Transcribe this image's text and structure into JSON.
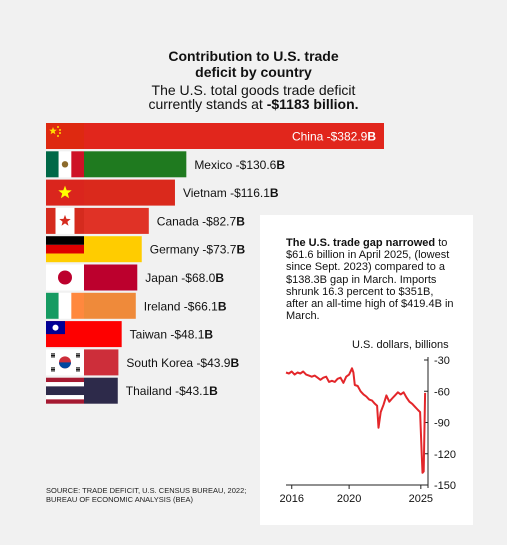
{
  "header": {
    "title_line1": "Contribution to U.S. trade",
    "title_line2": "deficit by country",
    "subtitle_line1": "The U.S. total goods trade deficit",
    "subtitle_line2_prefix": "currently stands at",
    "subtitle_line2_value": "-$1183 billion."
  },
  "source": {
    "line1": "SOURCE: TRADE DEFICIT, U.S. CENSUS BUREAU, 2022;",
    "line2": "BUREAU OF ECONOMIC ANALYSIS (BEA)"
  },
  "colors": {
    "china": "#e1261c",
    "mexico": "#1f7a1f",
    "vietnam": "#da291c",
    "canada": "#e03226",
    "germany": "#ffcc00",
    "japan": "#bc002d",
    "ireland": "#ef8a3a",
    "taiwan": "#fe0000",
    "south_korea": "#cd2e3a",
    "thailand": "#2d2a4a",
    "line": "#e3262a"
  },
  "chart_data": [
    {
      "type": "bar",
      "title": "Contribution to U.S. trade deficit by country",
      "categories": [
        "China",
        "Mexico",
        "Vietnam",
        "Canada",
        "Germany",
        "Japan",
        "Ireland",
        "Taiwan",
        "South Korea",
        "Thailand"
      ],
      "values": [
        -382.9,
        -130.6,
        -116.1,
        -82.7,
        -73.7,
        -68.0,
        -66.1,
        -48.1,
        -43.9,
        -43.1
      ],
      "labels": [
        "-$382.9B",
        "-$130.6B",
        "-$116.1B",
        "-$82.7B",
        "-$73.7B",
        "-$68.0B",
        "-$66.1B",
        "-$48.1B",
        "-$43.9B",
        "-$43.1B"
      ],
      "flags": [
        "china-flag",
        "mexico-flag",
        "vietnam-flag",
        "canada-flag",
        "germany-flag",
        "japan-flag",
        "ireland-flag",
        "taiwan-flag",
        "south-korea-flag",
        "thailand-flag"
      ]
    },
    {
      "type": "line",
      "note_bold": "The U.S. trade gap narrowed",
      "note_rest": " to $61.6 billion in April 2025, (lowest since Sept. 2023) compared to a $138.3B gap in March. Imports shrunk 16.3 percent to $351B, after an all-time high of $419.4B in March.",
      "ylabel": "U.S. dollars, billions",
      "y_ticks": [
        "-30",
        "-60",
        "-90",
        "-120",
        "-150"
      ],
      "y_tick_values": [
        -30,
        -60,
        -90,
        -120,
        -150
      ],
      "x_ticks": [
        "2016",
        "2020",
        "2025"
      ],
      "x_tick_values": [
        2016,
        2020,
        2025
      ],
      "xlim": [
        2015.6,
        2025.5
      ],
      "ylim": [
        -150,
        -30
      ],
      "series": [
        {
          "x": [
            2015.6,
            2015.8,
            2016.0,
            2016.2,
            2016.4,
            2016.6,
            2016.8,
            2017.0,
            2017.2,
            2017.4,
            2017.6,
            2017.8,
            2018.0,
            2018.2,
            2018.4,
            2018.6,
            2018.8,
            2019.0,
            2019.2,
            2019.4,
            2019.6,
            2019.8,
            2020.0,
            2020.2,
            2020.3,
            2020.4,
            2020.6,
            2020.8,
            2021.0,
            2021.2,
            2021.4,
            2021.6,
            2021.8,
            2021.95,
            2022.05,
            2022.2,
            2022.4,
            2022.6,
            2022.8,
            2023.0,
            2023.2,
            2023.4,
            2023.6,
            2023.8,
            2024.0,
            2024.2,
            2024.4,
            2024.6,
            2024.8,
            2024.95,
            2025.05,
            2025.12,
            2025.2,
            2025.3
          ],
          "y": [
            -42,
            -43,
            -41,
            -44,
            -42,
            -43,
            -41,
            -44,
            -45,
            -46,
            -45,
            -47,
            -49,
            -47,
            -46,
            -51,
            -50,
            -51,
            -48,
            -47,
            -52,
            -46,
            -44,
            -38,
            -42,
            -54,
            -55,
            -60,
            -63,
            -65,
            -68,
            -69,
            -72,
            -74,
            -95,
            -80,
            -73,
            -64,
            -70,
            -67,
            -64,
            -61,
            -63,
            -61,
            -66,
            -70,
            -72,
            -75,
            -78,
            -80,
            -115,
            -138.3,
            -137,
            -61.6
          ]
        }
      ]
    }
  ]
}
